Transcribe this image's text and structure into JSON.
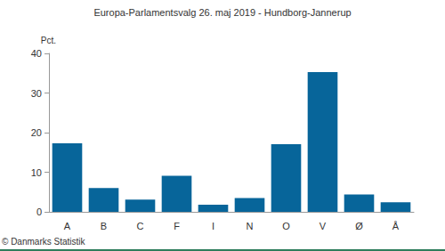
{
  "chart_data": {
    "type": "bar",
    "title": "Europa-Parlamentsvalg 26. maj 2019 - Hundborg-Jannerup",
    "y_label": "Pct.",
    "annotations": [
      "© Danmarks Statistik"
    ],
    "categories": [
      "A",
      "B",
      "C",
      "F",
      "I",
      "N",
      "O",
      "V",
      "Ø",
      "Å"
    ],
    "values": [
      17.3,
      6.0,
      3.1,
      9.1,
      1.8,
      3.5,
      17.1,
      35.3,
      4.4,
      2.4
    ],
    "color": "#07659a",
    "ylim": [
      0,
      40
    ],
    "yticks": [
      0,
      10,
      20,
      30,
      40
    ],
    "grid": false
  }
}
